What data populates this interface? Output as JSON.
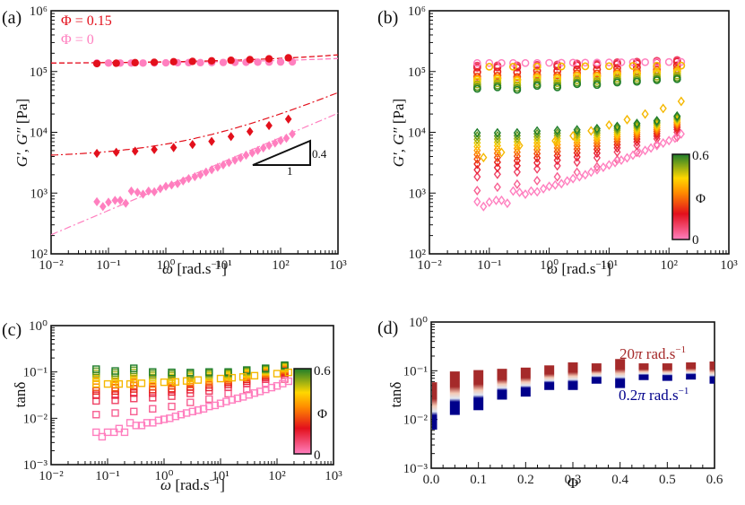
{
  "chart_data": [
    {
      "panel": "(a)",
      "type": "scatter",
      "xscale": "log",
      "yscale": "log",
      "xlabel": "ω [rad.s⁻¹]",
      "ylabel": "G′, G″ [Pa]",
      "xlim": [
        0.01,
        1000
      ],
      "ylim": [
        100,
        1000000
      ],
      "xticks": [
        "10⁻²",
        "10⁻¹",
        "10⁰",
        "10¹",
        "10²",
        "10³"
      ],
      "yticks": [
        "10²",
        "10³",
        "10⁴",
        "10⁵",
        "10⁶"
      ],
      "legend": [
        {
          "label": "Φ = 0.15",
          "color": "#e3101c"
        },
        {
          "label": "Φ = 0",
          "color": "#ff7fbf"
        }
      ],
      "annotation": {
        "type": "slope-triangle",
        "rise": "0.4",
        "run": "1"
      },
      "series": [
        {
          "name": "G′ Φ=0.15",
          "marker": "circle-filled",
          "color": "#e3101c",
          "x": [
            0.0628,
            0.1366,
            0.2915,
            0.628,
            1.366,
            2.915,
            6.28,
            13.66,
            29.15,
            62.8,
            136.6
          ],
          "y": [
            135000,
            137000,
            140000,
            142000,
            145000,
            147000,
            150000,
            153000,
            157000,
            162000,
            168000
          ]
        },
        {
          "name": "G′ Φ=0",
          "marker": "circle-filled",
          "color": "#ff7fbf",
          "x": [
            0.0628,
            0.1,
            0.16,
            0.25,
            0.4,
            0.63,
            1.0,
            1.6,
            2.5,
            4.0,
            6.3,
            10,
            16,
            25,
            40,
            63,
            100,
            160
          ],
          "y": [
            138000,
            138000,
            138000,
            138000,
            138000,
            138500,
            139000,
            139500,
            140000,
            140000,
            140500,
            141000,
            141500,
            142000,
            142500,
            143000,
            143500,
            144000
          ]
        },
        {
          "name": "G″ Φ=0.15",
          "marker": "diamond-filled",
          "color": "#e3101c",
          "x": [
            0.0628,
            0.1366,
            0.2915,
            0.628,
            1.366,
            2.915,
            6.28,
            13.66,
            29.15,
            62.8,
            136.6
          ],
          "y": [
            4500,
            4700,
            4900,
            5200,
            5600,
            6300,
            7100,
            8500,
            10300,
            12900,
            16500
          ]
        },
        {
          "name": "G″ Φ=0",
          "marker": "diamond-filled",
          "color": "#ff7fbf",
          "x": [
            0.0628,
            0.08,
            0.1,
            0.13,
            0.16,
            0.2,
            0.25,
            0.32,
            0.4,
            0.5,
            0.63,
            0.8,
            1.0,
            1.26,
            1.6,
            2.0,
            2.5,
            3.2,
            4.0,
            5.0,
            6.3,
            8.0,
            10,
            12.6,
            16,
            20,
            25,
            32,
            40,
            50,
            63,
            80,
            100,
            126,
            160
          ],
          "y": [
            720,
            600,
            710,
            760,
            760,
            680,
            1080,
            1030,
            960,
            1080,
            1050,
            1180,
            1290,
            1360,
            1430,
            1580,
            1730,
            1860,
            2000,
            2210,
            2420,
            2660,
            2910,
            3180,
            3480,
            3800,
            4200,
            4580,
            5030,
            5520,
            6050,
            6650,
            7300,
            8000,
            9400
          ]
        }
      ],
      "fits": [
        {
          "name": "fit G′ Φ=0.15",
          "style": "dashed",
          "color": "#e3101c"
        },
        {
          "name": "fit G′ Φ=0",
          "style": "dashed",
          "color": "#ff7fbf"
        },
        {
          "name": "fit G″ Φ=0.15",
          "style": "dash-dot",
          "color": "#e3101c"
        },
        {
          "name": "fit G″ Φ=0",
          "style": "dash-dot",
          "color": "#ff7fbf"
        }
      ]
    },
    {
      "panel": "(b)",
      "type": "scatter",
      "xscale": "log",
      "yscale": "log",
      "xlabel": "ω [rad.s⁻¹]",
      "ylabel": "G′, G″ [Pa]",
      "xlim": [
        0.01,
        1000
      ],
      "ylim": [
        100,
        1000000
      ],
      "xticks": [
        "10⁻²",
        "10⁻¹",
        "10⁰",
        "10¹",
        "10²",
        "10³"
      ],
      "yticks": [
        "10²",
        "10³",
        "10⁴",
        "10⁵",
        "10⁶"
      ],
      "colorbar": {
        "label": "Φ",
        "min": "0",
        "max": "0.6",
        "colors": [
          "#ff7fbf",
          "#e3101c",
          "#ff8c00",
          "#ffd700",
          "#1e7d2b"
        ]
      },
      "series_description": "G′ open circles (~5e4–1.7e5 Pa) and G″ open diamonds (~600–1.8e4 Pa) for Φ from 0 to 0.6, colored by Φ",
      "x": [
        0.0628,
        0.1366,
        0.2915,
        0.628,
        1.366,
        2.915,
        6.28,
        13.66,
        29.15,
        62.8,
        136.6
      ],
      "G_prime_range": {
        "min": [
          52000,
          55000,
          50000,
          58000,
          55000,
          62000,
          60000,
          66000,
          68000,
          72000,
          75000
        ],
        "max": [
          140000,
          140000,
          142000,
          143000,
          146000,
          150000,
          153000,
          157000,
          160000,
          165000,
          170000
        ]
      },
      "G_double_prime_range": {
        "min": [
          1100,
          1250,
          1400,
          1600,
          1850,
          2200,
          2700,
          3500,
          4700,
          6300,
          8300
        ],
        "max": [
          9800,
          9800,
          9800,
          10500,
          10700,
          11000,
          11500,
          12500,
          14000,
          15500,
          18500
        ]
      }
    },
    {
      "panel": "(c)",
      "type": "scatter",
      "xscale": "log",
      "yscale": "log",
      "xlabel": "ω [rad.s⁻¹]",
      "ylabel": "tanδ",
      "xlim": [
        0.01,
        1000
      ],
      "ylim": [
        0.001,
        1
      ],
      "xticks": [
        "10⁻²",
        "10⁻¹",
        "10⁰",
        "10¹",
        "10²",
        "10³"
      ],
      "yticks": [
        "10⁻³",
        "10⁻²",
        "10⁻¹",
        "10⁰"
      ],
      "colorbar": {
        "label": "Φ",
        "min": "0",
        "max": "0.6"
      },
      "series": [
        {
          "name": "Φ=0",
          "marker": "square-open",
          "color": "#ff7fbf",
          "x": [
            0.0628,
            0.08,
            0.1,
            0.13,
            0.16,
            0.2,
            0.25,
            0.32,
            0.4,
            0.5,
            0.63,
            0.8,
            1.0,
            1.26,
            1.6,
            2.0,
            2.5,
            3.2,
            4.0,
            5.0,
            6.3,
            8.0,
            10,
            12.6,
            16,
            20,
            25,
            32,
            40,
            50,
            63,
            80,
            100,
            126,
            160
          ],
          "y": [
            0.005,
            0.004,
            0.005,
            0.005,
            0.006,
            0.005,
            0.008,
            0.007,
            0.007,
            0.008,
            0.008,
            0.009,
            0.0095,
            0.01,
            0.011,
            0.012,
            0.013,
            0.014,
            0.015,
            0.016,
            0.018,
            0.019,
            0.021,
            0.023,
            0.025,
            0.027,
            0.029,
            0.032,
            0.035,
            0.038,
            0.042,
            0.046,
            0.05,
            0.056,
            0.063
          ]
        },
        {
          "name": "Φ≈0.4 (orange-yellow)",
          "marker": "square-open",
          "color": "#f5b800",
          "x": [
            0.0628,
            0.1,
            0.16,
            0.25,
            0.4,
            1.0,
            1.6,
            2.5,
            4.0,
            10,
            16,
            25,
            40,
            100,
            160
          ],
          "y": [
            0.055,
            0.055,
            0.055,
            0.055,
            0.057,
            0.06,
            0.061,
            0.064,
            0.067,
            0.072,
            0.075,
            0.078,
            0.083,
            0.092,
            0.098
          ]
        }
      ],
      "x_columns": [
        0.0628,
        0.1366,
        0.2915,
        0.628,
        1.366,
        2.915,
        6.28,
        13.66,
        29.15,
        62.8,
        136.6
      ],
      "column_range": {
        "min": [
          0.012,
          0.013,
          0.014,
          0.016,
          0.018,
          0.022,
          0.026,
          0.034,
          0.042,
          0.055,
          0.07
        ],
        "max": [
          0.115,
          0.105,
          0.12,
          0.1,
          0.098,
          0.097,
          0.1,
          0.1,
          0.11,
          0.12,
          0.14
        ]
      }
    },
    {
      "panel": "(d)",
      "type": "bar",
      "xscale": "linear",
      "yscale": "log",
      "xlabel": "Φ",
      "ylabel": "tanδ",
      "xlim": [
        0,
        0.6
      ],
      "ylim": [
        0.001,
        1
      ],
      "xticks": [
        "0.0",
        "0.1",
        "0.2",
        "0.3",
        "0.4",
        "0.5",
        "0.6"
      ],
      "yticks": [
        "10⁻³",
        "10⁻²",
        "10⁻¹",
        "10⁰"
      ],
      "annotations": [
        {
          "text": "20π rad.s⁻¹",
          "color": "#a52a2a"
        },
        {
          "text": "0.2π rad.s⁻¹",
          "color": "#00008b"
        }
      ],
      "categories": [
        0.0,
        0.05,
        0.1,
        0.15,
        0.2,
        0.25,
        0.3,
        0.35,
        0.4,
        0.45,
        0.5,
        0.55,
        0.6
      ],
      "series": [
        {
          "name": "20π rad.s⁻¹ (top)",
          "color": "#a52a2a",
          "values": [
            0.045,
            0.075,
            0.08,
            0.085,
            0.09,
            0.1,
            0.115,
            0.11,
            0.135,
            0.11,
            0.11,
            0.115,
            0.12
          ]
        },
        {
          "name": "0.2π rad.s⁻¹ (bottom)",
          "color": "#00008b",
          "values": [
            0.008,
            0.016,
            0.02,
            0.033,
            0.038,
            0.052,
            0.052,
            0.07,
            0.057,
            0.083,
            0.08,
            0.085,
            0.07
          ]
        }
      ]
    }
  ],
  "labels": {
    "a": "(a)",
    "b": "(b)",
    "c": "(c)",
    "d": "(d)",
    "legend_phi015": "Φ = 0.15",
    "legend_phi0": "Φ = 0",
    "slope_rise": "0.4",
    "slope_run": "1",
    "phi": "Φ",
    "cb_max": "0.6",
    "cb_min": "0",
    "ann_20pi": "20π rad.s",
    "ann_02pi": "0.2π rad.s",
    "sup_m1": "−1",
    "tand": "tanδ",
    "omega_unit": " [rad.s",
    "omega_close": "]",
    "gprime": "G′, G″",
    "pa": " [Pa]"
  }
}
